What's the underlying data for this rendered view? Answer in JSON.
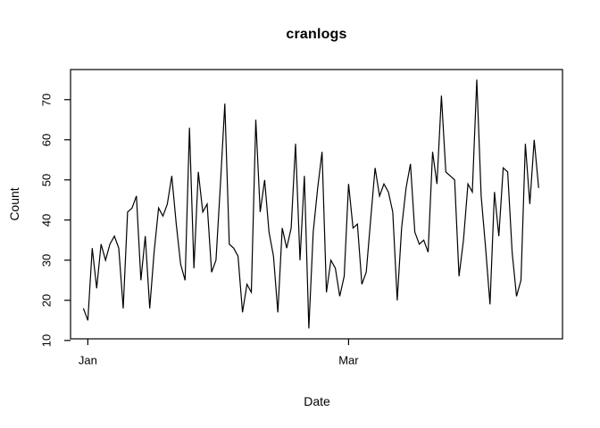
{
  "chart_data": {
    "type": "line",
    "title": "cranlogs",
    "xlabel": "Date",
    "ylabel": "Count",
    "legend": "none",
    "grid": false,
    "background_color": "#ffffff",
    "line_color": "#000000",
    "text_color": "#000000",
    "ylim": [
      10.4,
      77.5
    ],
    "y_ticks": [
      10,
      20,
      30,
      40,
      50,
      60,
      70
    ],
    "x_ticks": [
      {
        "label": "Jan",
        "day_index": 1
      },
      {
        "label": "Mar",
        "day_index": 60
      }
    ],
    "x_unit": "day",
    "series_start": "one day before Jan tick",
    "values": [
      18,
      15,
      33,
      23,
      34,
      30,
      34,
      36,
      33,
      18,
      42,
      43,
      46,
      25,
      36,
      18,
      32,
      43,
      41,
      44,
      51,
      39,
      29,
      25,
      63,
      28,
      52,
      42,
      44,
      27,
      30,
      49,
      69,
      34,
      33,
      31,
      17,
      24,
      22,
      65,
      42,
      50,
      37,
      31,
      17,
      38,
      33,
      38,
      59,
      30,
      51,
      13,
      37,
      48,
      57,
      22,
      30,
      28,
      21,
      26,
      49,
      38,
      39,
      24,
      27,
      40,
      53,
      46,
      49,
      47,
      42,
      20,
      38,
      48,
      54,
      37,
      34,
      35,
      32,
      57,
      49,
      71,
      52,
      51,
      50,
      26,
      35,
      49,
      47,
      75,
      46,
      33,
      19,
      47,
      36,
      53,
      52,
      32,
      21,
      25,
      59,
      44,
      60,
      48
    ]
  }
}
